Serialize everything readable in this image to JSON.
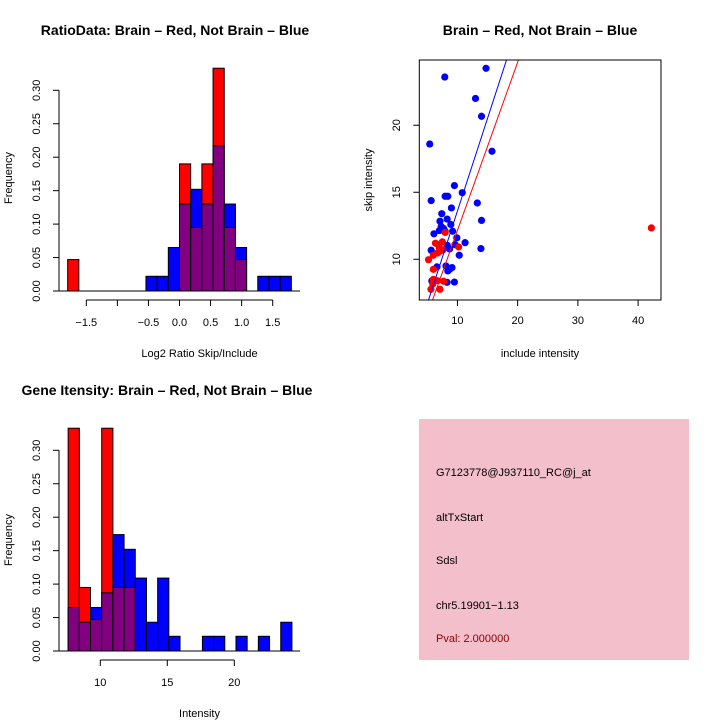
{
  "colors": {
    "red": "#ff0000",
    "blue": "#0000ff",
    "overlap": "#800080",
    "panel_bg": "#f2bfcb",
    "pval": "#8b0000"
  },
  "chart_data": [
    {
      "type": "bar",
      "title": "RatioData: Brain – Red, Not Brain – Blue",
      "xlabel": "Log2 Ratio Skip/Include",
      "ylabel": "Frequency",
      "bin_start": -1.8,
      "bin_width": 0.18,
      "series": [
        {
          "name": "Brain",
          "color": "red",
          "values": [
            0.047,
            0,
            0,
            0,
            0,
            0,
            0,
            0,
            0,
            0,
            0.19,
            0.095,
            0.19,
            0.333,
            0.095,
            0.047,
            0,
            0,
            0,
            0
          ]
        },
        {
          "name": "Not Brain",
          "color": "blue",
          "values": [
            0,
            0,
            0,
            0,
            0,
            0,
            0,
            0.022,
            0.022,
            0.065,
            0.13,
            0.152,
            0.13,
            0.217,
            0.13,
            0.065,
            0,
            0.022,
            0.022,
            0.022
          ]
        }
      ],
      "xticks": [
        -1.5,
        -1.0,
        -0.5,
        0.0,
        0.5,
        1.0,
        1.5
      ],
      "xtick_labels": [
        "−1.5",
        "",
        "−0.5",
        "0.0",
        "0.5",
        "1.0",
        "1.5"
      ],
      "yticks": [
        0,
        0.05,
        0.1,
        0.15,
        0.2,
        0.25,
        0.3
      ],
      "ytick_labels": [
        "0.00",
        "0.05",
        "0.10",
        "0.15",
        "0.20",
        "0.25",
        "0.30"
      ],
      "xlim": [
        -1.9,
        1.9
      ],
      "ylim": [
        0,
        0.333
      ]
    },
    {
      "type": "scatter",
      "title": "Brain – Red, Not Brain – Blue",
      "xlabel": "include intensity",
      "ylabel": "skip intensity",
      "xlim": [
        3.67,
        43.8
      ],
      "ylim": [
        6.96,
        24.87
      ],
      "xticks": [
        10,
        20,
        30,
        40
      ],
      "xtick_labels": [
        "10",
        "20",
        "30",
        "40"
      ],
      "yticks": [
        10,
        15,
        20
      ],
      "ytick_labels": [
        "10",
        "15",
        "20"
      ],
      "series": [
        {
          "name": "Not Brain",
          "color": "blue",
          "points": [
            [
              14.75,
              24.25
            ],
            [
              7.9,
              23.6
            ],
            [
              13.0,
              22.0
            ],
            [
              14.0,
              20.67
            ],
            [
              5.4,
              18.6
            ],
            [
              15.74,
              18.06
            ],
            [
              9.5,
              15.5
            ],
            [
              10.8,
              14.97
            ],
            [
              7.96,
              14.7
            ],
            [
              8.4,
              14.7
            ],
            [
              5.64,
              14.38
            ],
            [
              13.3,
              14.2
            ],
            [
              9.0,
              13.83
            ],
            [
              7.4,
              13.4
            ],
            [
              8.3,
              13.0
            ],
            [
              14.0,
              12.9
            ],
            [
              7.1,
              12.84
            ],
            [
              8.9,
              12.6
            ],
            [
              7.3,
              12.44
            ],
            [
              7.7,
              12.3
            ],
            [
              7.0,
              12.14
            ],
            [
              7.96,
              12.09
            ],
            [
              9.2,
              12.09
            ],
            [
              6.1,
              11.9
            ],
            [
              9.9,
              11.6
            ],
            [
              11.27,
              11.24
            ],
            [
              6.9,
              11.07
            ],
            [
              8.3,
              11.04
            ],
            [
              9.6,
              11.09
            ],
            [
              8.7,
              10.77
            ],
            [
              13.9,
              10.8
            ],
            [
              5.64,
              10.67
            ],
            [
              10.3,
              10.3
            ],
            [
              6.6,
              9.43
            ],
            [
              8.1,
              9.5
            ],
            [
              8.7,
              9.25
            ],
            [
              9.1,
              9.38
            ],
            [
              8.4,
              9.13
            ],
            [
              5.75,
              8.38
            ],
            [
              8.29,
              8.28
            ],
            [
              9.5,
              8.3
            ]
          ]
        },
        {
          "name": "Brain",
          "color": "red",
          "points": [
            [
              5.2,
              9.97
            ],
            [
              6.0,
              10.3
            ],
            [
              6.35,
              11.2
            ],
            [
              6.7,
              10.47
            ],
            [
              7.1,
              10.6
            ],
            [
              7.6,
              10.7
            ],
            [
              7.0,
              10.85
            ],
            [
              7.5,
              11.3
            ],
            [
              7.96,
              12.0
            ],
            [
              10.2,
              10.92
            ],
            [
              6.0,
              9.25
            ],
            [
              6.0,
              8.5
            ],
            [
              6.7,
              8.4
            ],
            [
              5.9,
              8.16
            ],
            [
              5.6,
              7.76
            ],
            [
              7.1,
              7.76
            ],
            [
              7.7,
              8.36
            ],
            [
              42.2,
              12.34
            ]
          ]
        }
      ],
      "fit_lines": [
        {
          "name": "Not Brain",
          "color": "blue",
          "intercept": -0.23,
          "slope": 1.383
        },
        {
          "name": "Brain",
          "color": "red",
          "intercept": -0.4,
          "slope": 1.255
        }
      ]
    },
    {
      "type": "bar",
      "title": "Gene Itensity: Brain – Red, Not Brain – Blue",
      "xlabel": "Intensity",
      "ylabel": "Frequency",
      "bin_start": 7.6,
      "bin_width": 0.835,
      "series": [
        {
          "name": "Brain",
          "color": "red",
          "values": [
            0.333,
            0.095,
            0.047,
            0.333,
            0.095,
            0.095,
            0,
            0,
            0,
            0,
            0,
            0,
            0,
            0,
            0,
            0,
            0,
            0,
            0,
            0
          ]
        },
        {
          "name": "Not Brain",
          "color": "blue",
          "values": [
            0.065,
            0.043,
            0.065,
            0.087,
            0.174,
            0.152,
            0.109,
            0.043,
            0.109,
            0.022,
            0,
            0,
            0.022,
            0.022,
            0,
            0.022,
            0,
            0.022,
            0,
            0.043
          ]
        }
      ],
      "xticks": [
        10,
        15,
        20
      ],
      "xtick_labels": [
        "10",
        "15",
        "20"
      ],
      "yticks": [
        0,
        0.05,
        0.1,
        0.15,
        0.2,
        0.25,
        0.3
      ],
      "ytick_labels": [
        "0.00",
        "0.05",
        "0.10",
        "0.15",
        "0.20",
        "0.25",
        "0.30"
      ],
      "xlim": [
        7.2,
        24.7
      ],
      "ylim": [
        0,
        0.333
      ]
    }
  ],
  "info_panel": {
    "probe": "G7123778@J937110_RC@j_at",
    "event_type": "altTxStart",
    "gene": "Sdsl",
    "location": "chr5.19901−1.13",
    "pval": "Pval: 2.000000"
  }
}
